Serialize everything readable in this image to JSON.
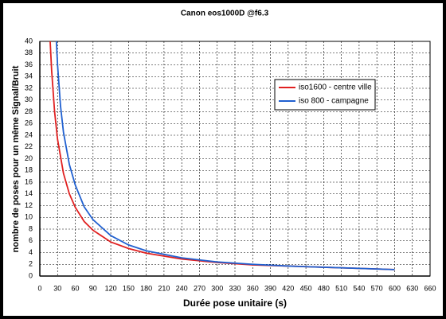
{
  "chart_data": {
    "type": "line",
    "title": "Canon eos1000D @f6.3",
    "x_label": "Durée pose unitaire (s)",
    "y_label": "nombre de poses pour un même Signal/Bruit",
    "series": [
      {
        "name": "iso1600 - centre ville",
        "color": "#e02020",
        "x": [
          17.5,
          20,
          25,
          30,
          40,
          50,
          60,
          75,
          90,
          120,
          150,
          180,
          240,
          300,
          360,
          420,
          480,
          540,
          600
        ],
        "values": [
          40,
          35,
          28,
          23.3,
          17.5,
          14,
          11.7,
          9.3,
          7.8,
          5.8,
          4.7,
          3.9,
          2.9,
          2.3,
          1.9,
          1.7,
          1.5,
          1.3,
          1.1
        ]
      },
      {
        "name": "iso 800 - campagne",
        "color": "#2060d0",
        "x": [
          28,
          30,
          35,
          40,
          50,
          60,
          75,
          90,
          120,
          150,
          180,
          240,
          300,
          360,
          420,
          480,
          540,
          600
        ],
        "values": [
          40,
          36,
          29,
          24.5,
          19,
          15.5,
          11.8,
          9.6,
          6.9,
          5.3,
          4.3,
          3.1,
          2.4,
          2.0,
          1.7,
          1.5,
          1.3,
          1.1
        ]
      }
    ],
    "xlim": [
      0,
      660
    ],
    "xticks": [
      0,
      30,
      60,
      90,
      120,
      150,
      180,
      210,
      240,
      270,
      300,
      330,
      360,
      390,
      420,
      450,
      480,
      510,
      540,
      570,
      600,
      630,
      660
    ],
    "ylim": [
      0,
      40
    ],
    "yticks": [
      0,
      2,
      4,
      6,
      8,
      10,
      12,
      14,
      16,
      18,
      20,
      22,
      24,
      26,
      28,
      30,
      32,
      34,
      36,
      38,
      40
    ],
    "grid": true,
    "legend": "upper right"
  }
}
